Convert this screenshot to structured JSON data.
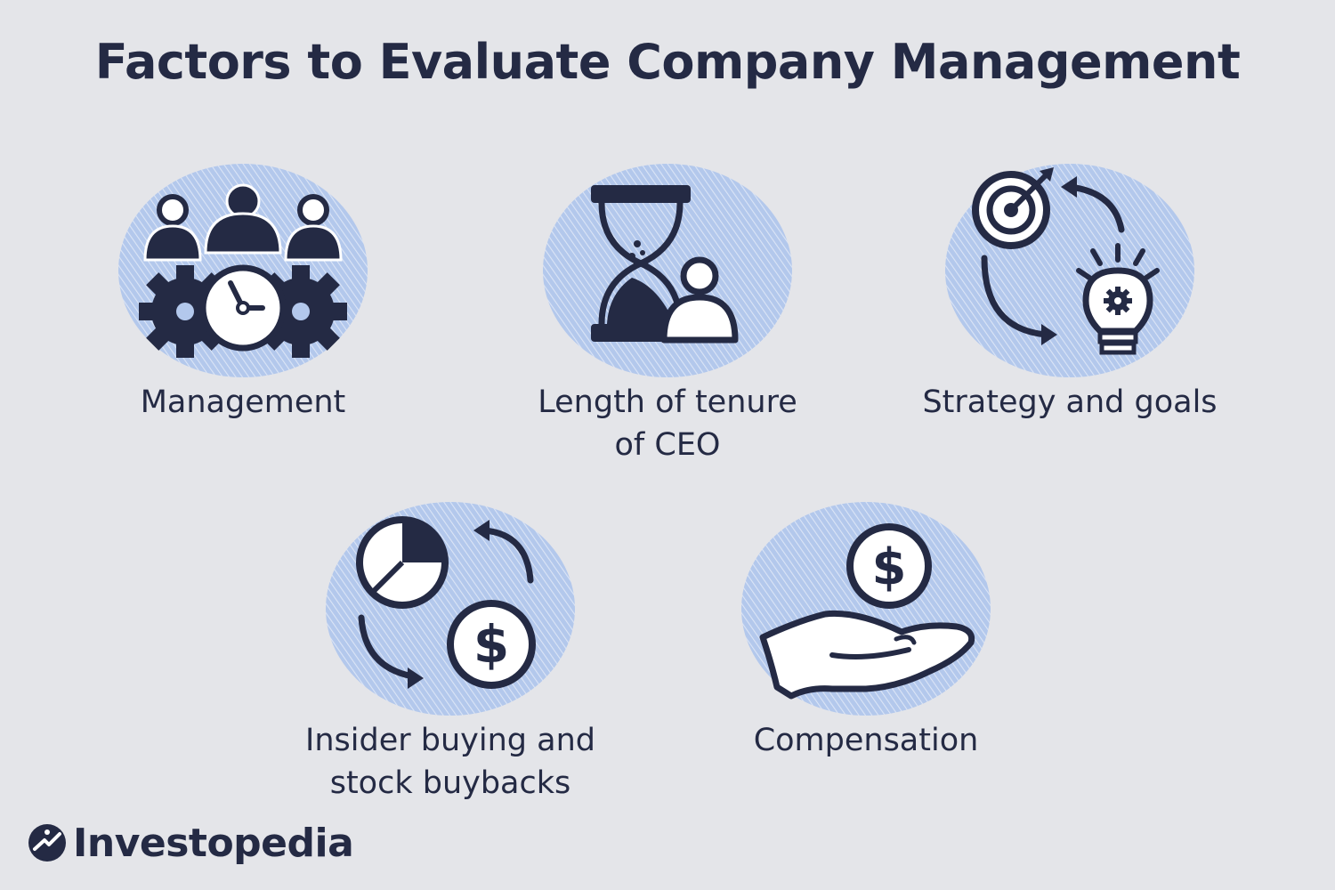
{
  "title": "Factors to Evaluate Company Management",
  "colors": {
    "background": "#e4e5e9",
    "ink": "#242a44",
    "circle_fill": "#b9cdee",
    "circle_hatch": "#ffffff"
  },
  "factors": [
    {
      "id": "management",
      "label_line1": "Management",
      "label_line2": "",
      "icon": "team-gears-clock-icon"
    },
    {
      "id": "tenure",
      "label_line1": "Length of tenure",
      "label_line2": "of CEO",
      "icon": "hourglass-person-icon"
    },
    {
      "id": "strategy",
      "label_line1": "Strategy and goals",
      "label_line2": "",
      "icon": "target-lightbulb-cycle-icon"
    },
    {
      "id": "insider",
      "label_line1": "Insider buying and",
      "label_line2": "stock buybacks",
      "icon": "pie-dollar-cycle-icon"
    },
    {
      "id": "compensation",
      "label_line1": "Compensation",
      "label_line2": "",
      "icon": "hand-coin-icon"
    }
  ],
  "logo": {
    "text": "Investopedia",
    "icon": "investopedia-logo-icon"
  }
}
